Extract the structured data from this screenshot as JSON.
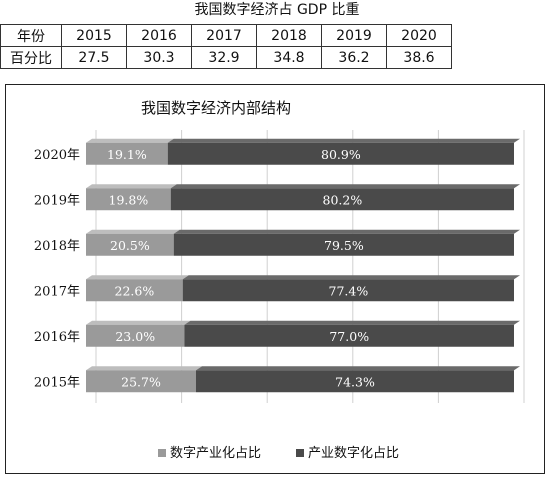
{
  "table": {
    "title": "我国数字经济占 GDP 比重",
    "row_header_year": "年份",
    "row_header_pct": "百分比",
    "years": [
      "2015",
      "2016",
      "2017",
      "2018",
      "2019",
      "2020"
    ],
    "percents": [
      "27.5",
      "30.3",
      "32.9",
      "34.8",
      "36.2",
      "38.6"
    ]
  },
  "chart_data": {
    "type": "bar",
    "orientation": "horizontal",
    "stacked": "100%",
    "title": "我国数字经济内部结构",
    "categories": [
      "2020年",
      "2019年",
      "2018年",
      "2017年",
      "2016年",
      "2015年"
    ],
    "series": [
      {
        "name": "数字产业化占比",
        "values": [
          19.1,
          19.8,
          20.5,
          22.6,
          23.0,
          25.7
        ],
        "labels": [
          "19.1%",
          "19.8%",
          "20.5%",
          "22.6%",
          "23.0%",
          "25.7%"
        ],
        "color": "#9a9a9a"
      },
      {
        "name": "产业数字化占比",
        "values": [
          80.9,
          80.2,
          79.5,
          77.4,
          77.0,
          74.3
        ],
        "labels": [
          "80.9%",
          "80.2%",
          "79.5%",
          "77.4%",
          "77.0%",
          "74.3%"
        ],
        "color": "#4a4a4a"
      }
    ],
    "xlim": [
      0,
      100
    ],
    "grid": true,
    "legend_position": "bottom"
  }
}
